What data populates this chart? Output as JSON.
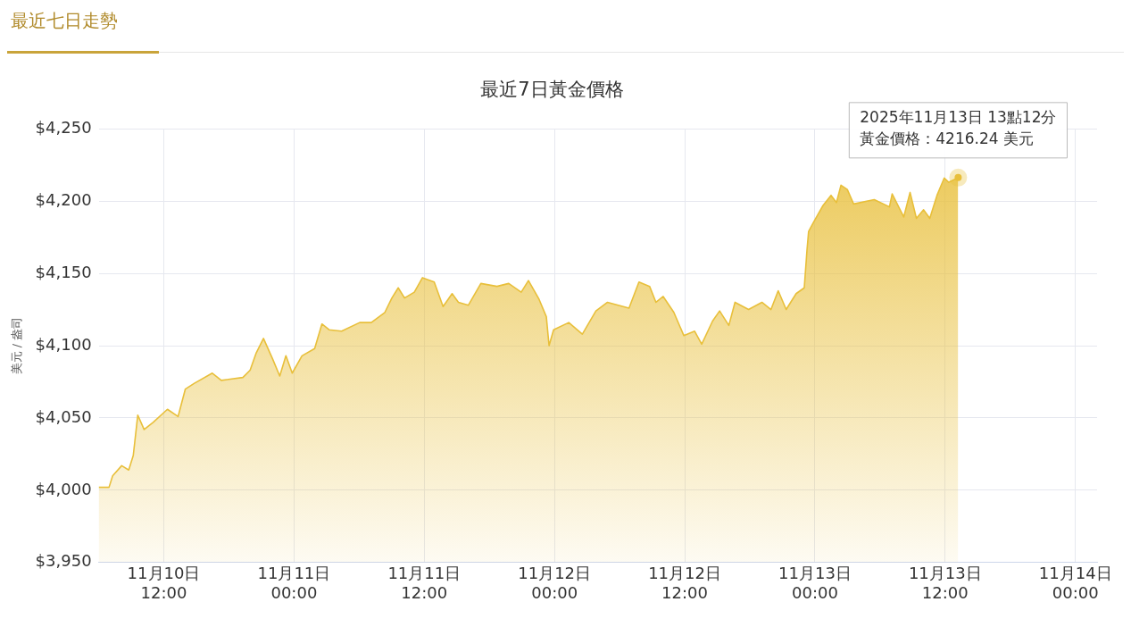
{
  "chart_data": {
    "type": "area",
    "title": "最近7日黃金價格",
    "ylabel": "美元 / 盎司",
    "color": "#e8bf3a",
    "grid": true,
    "marker": "none",
    "legend": false,
    "x": [
      "2025-11-10T06:00",
      "2025-11-10T06:57",
      "2025-11-10T07:17",
      "2025-11-10T08:07",
      "2025-11-10T08:46",
      "2025-11-10T09:11",
      "2025-11-10T09:36",
      "2025-11-10T10:11",
      "2025-11-10T11:01",
      "2025-11-10T12:20",
      "2025-11-10T13:19",
      "2025-11-10T13:59",
      "2025-11-10T14:49",
      "2025-11-10T16:28",
      "2025-11-10T17:18",
      "2025-11-10T19:17",
      "2025-11-10T19:57",
      "2025-11-10T20:31",
      "2025-11-10T21:11",
      "2025-11-10T22:01",
      "2025-11-10T22:41",
      "2025-11-10T23:15",
      "2025-11-10T23:50",
      "2025-11-11T00:44",
      "2025-11-11T01:54",
      "2025-11-11T02:34",
      "2025-11-11T03:14",
      "2025-11-11T04:23",
      "2025-11-11T06:03",
      "2025-11-11T07:07",
      "2025-11-11T08:22",
      "2025-11-11T09:01",
      "2025-11-11T09:36",
      "2025-11-11T10:11",
      "2025-11-11T11:05",
      "2025-11-11T11:50",
      "2025-11-11T12:55",
      "2025-11-11T13:44",
      "2025-11-11T14:34",
      "2025-11-11T15:09",
      "2025-11-11T16:04",
      "2025-11-11T17:13",
      "2025-11-11T18:42",
      "2025-11-11T19:47",
      "2025-11-11T20:56",
      "2025-11-11T21:36",
      "2025-11-11T22:35",
      "2025-11-11T23:15",
      "2025-11-11T23:30",
      "2025-11-11T23:55",
      "2025-11-12T01:19",
      "2025-11-12T02:34",
      "2025-11-12T03:49",
      "2025-11-12T04:53",
      "2025-11-12T06:52",
      "2025-11-12T07:47",
      "2025-11-12T08:46",
      "2025-11-12T09:21",
      "2025-11-12T10:01",
      "2025-11-12T11:00",
      "2025-11-12T11:55",
      "2025-11-12T12:55",
      "2025-11-12T13:34",
      "2025-11-12T14:34",
      "2025-11-12T15:13",
      "2025-11-12T16:04",
      "2025-11-12T16:38",
      "2025-11-12T17:53",
      "2025-11-12T19:07",
      "2025-11-12T19:57",
      "2025-11-12T20:37",
      "2025-11-12T21:21",
      "2025-11-12T22:16",
      "2025-11-12T23:01",
      "2025-11-12T23:16",
      "2025-11-12T23:25",
      "2025-11-12T23:55",
      "2025-11-13T00:45",
      "2025-11-13T01:29",
      "2025-11-13T01:59",
      "2025-11-13T02:24",
      "2025-11-13T02:59",
      "2025-11-13T03:34",
      "2025-11-13T05:28",
      "2025-11-13T06:52",
      "2025-11-13T07:07",
      "2025-11-13T08:11",
      "2025-11-13T08:46",
      "2025-11-13T09:21",
      "2025-11-13T10:01",
      "2025-11-13T10:35",
      "2025-11-13T11:15",
      "2025-11-13T11:55",
      "2025-11-13T12:20",
      "2025-11-13T13:12"
    ],
    "values": [
      4002,
      4002,
      4010,
      4017,
      4014,
      4024,
      4052,
      4042,
      4047,
      4056,
      4051,
      4070,
      4074,
      4081,
      4076,
      4078,
      4083,
      4095,
      4105,
      4091,
      4079,
      4093,
      4081,
      4093,
      4098,
      4115,
      4111,
      4110,
      4116,
      4116,
      4123,
      4133,
      4140,
      4133,
      4137,
      4147,
      4144,
      4127,
      4136,
      4130,
      4128,
      4143,
      4141,
      4143,
      4137,
      4145,
      4132,
      4120,
      4100,
      4111,
      4116,
      4108,
      4124,
      4130,
      4126,
      4144,
      4141,
      4130,
      4134,
      4123,
      4107,
      4110,
      4101,
      4117,
      4124,
      4114,
      4130,
      4125,
      4130,
      4125,
      4138,
      4125,
      4136,
      4140,
      4166,
      4179,
      4186,
      4197,
      4204,
      4199,
      4211,
      4208,
      4198,
      4201,
      4196,
      4205,
      4189,
      4206,
      4188,
      4194,
      4188,
      4204,
      4216,
      4213,
      4216.24
    ],
    "xlim": [
      "2025-11-10T06:00",
      "2025-11-14T02:00"
    ],
    "xticks": [
      {
        "value": "2025-11-10T12:00",
        "label": "11月10日\n12:00"
      },
      {
        "value": "2025-11-11T00:00",
        "label": "11月11日\n00:00"
      },
      {
        "value": "2025-11-11T12:00",
        "label": "11月11日\n12:00"
      },
      {
        "value": "2025-11-12T00:00",
        "label": "11月12日\n00:00"
      },
      {
        "value": "2025-11-12T12:00",
        "label": "11月12日\n12:00"
      },
      {
        "value": "2025-11-13T00:00",
        "label": "11月13日\n00:00"
      },
      {
        "value": "2025-11-13T12:00",
        "label": "11月13日\n12:00"
      },
      {
        "value": "2025-11-14T00:00",
        "label": "11月14日\n00:00"
      }
    ],
    "ylim": [
      3950,
      4250
    ],
    "yticks": [
      {
        "value": 3950,
        "label": "$3,950"
      },
      {
        "value": 4000,
        "label": "$4,000"
      },
      {
        "value": 4050,
        "label": "$4,050"
      },
      {
        "value": 4100,
        "label": "$4,100"
      },
      {
        "value": 4150,
        "label": "$4,150"
      },
      {
        "value": 4200,
        "label": "$4,200"
      },
      {
        "value": 4250,
        "label": "$4,250"
      }
    ],
    "annotations": [
      "最近七日走勢",
      "2025年11月13日 13點12分",
      {
        "text": "黃金價格：4216.24 美元",
        "x": "2025-11-13T13:12",
        "y": 4216.24
      }
    ]
  }
}
